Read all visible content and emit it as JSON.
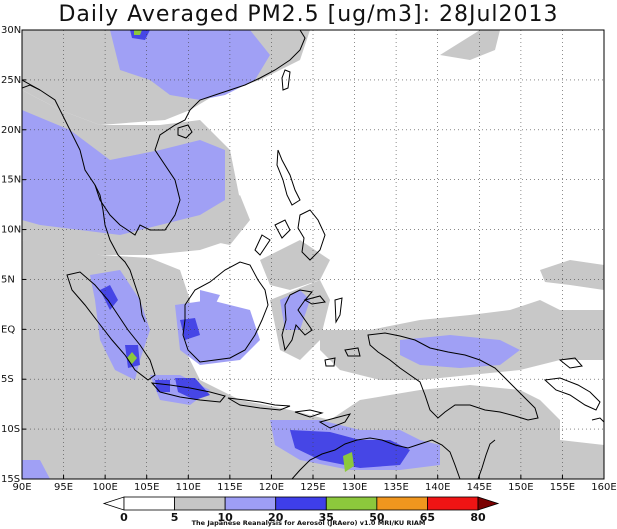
{
  "title": "Daily Averaged PM2.5 [ug/m3]: 28Jul2013",
  "credit": "The Japanese Reanalysis for Aerosol (JRAero) v1.0 MRI/KU RIAM",
  "map": {
    "lon_range": [
      90,
      160
    ],
    "lat_range": [
      -15,
      30
    ],
    "lon_labels": [
      "90E",
      "95E",
      "100E",
      "105E",
      "110E",
      "115E",
      "120E",
      "125E",
      "130E",
      "135E",
      "140E",
      "145E",
      "150E",
      "155E",
      "160E"
    ],
    "lat_labels": [
      "30N",
      "25N",
      "20N",
      "15N",
      "10N",
      "5N",
      "EQ",
      "5S",
      "10S",
      "15S"
    ],
    "gridlines": "dotted"
  },
  "colorbar": {
    "levels": [
      "0",
      "5",
      "10",
      "20",
      "35",
      "50",
      "65",
      "80"
    ],
    "colors": [
      "#ffffff",
      "#ffffff",
      "#c6c6c6",
      "#9e9ef6",
      "#3e3eea",
      "#8cc83c",
      "#f0961e",
      "#f01414",
      "#7a0000"
    ]
  },
  "legend_colors": {
    "land_line": "#000000",
    "gray": "#c8c8c8",
    "light_blue": "#a0a0f5",
    "blue": "#4646e6",
    "green": "#8cc83c"
  }
}
